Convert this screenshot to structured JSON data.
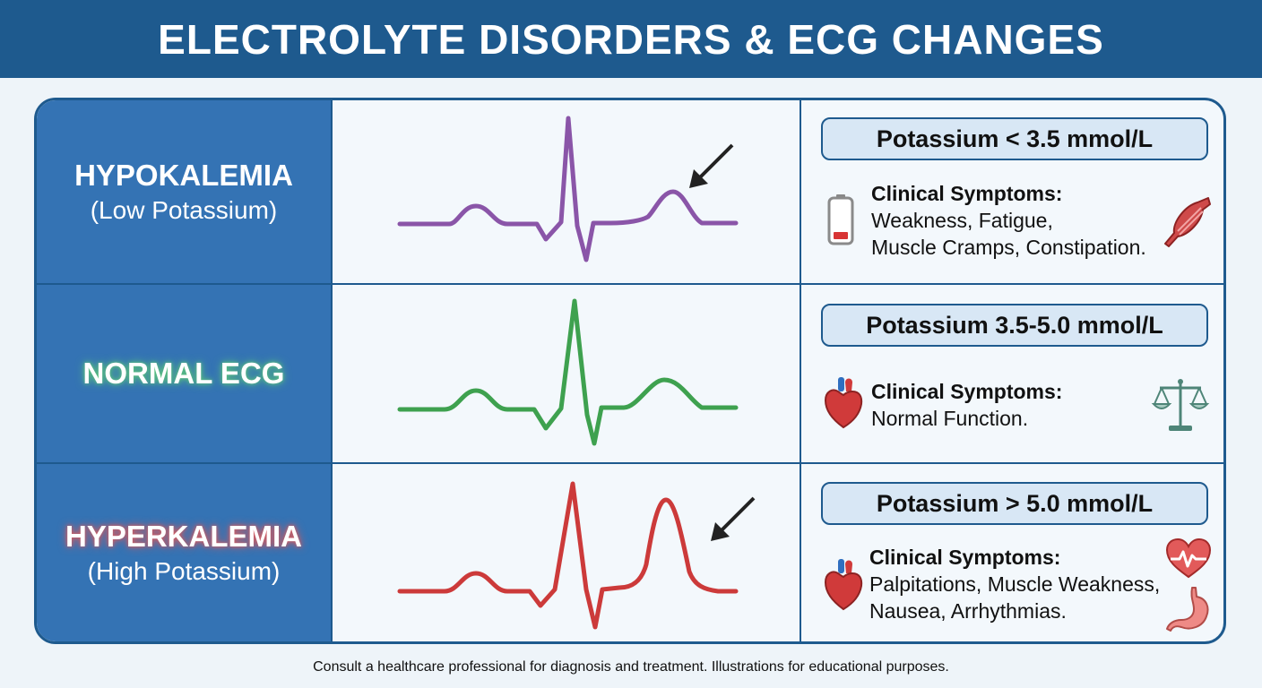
{
  "header": {
    "title": "ELECTROLYTE DISORDERS & ECG CHANGES"
  },
  "rows": [
    {
      "label_main": "HYPOKALEMIA",
      "label_sub": "(Low Potassium)",
      "potassium": "Potassium < 3.5 mmol/L",
      "symptoms_heading": "Clinical Symptoms:",
      "symptoms_lines": [
        "Weakness, Fatigue,",
        "Muscle Cramps, Constipation."
      ],
      "ecg_color": "#8a55a8",
      "icons": [
        "battery-low-icon",
        "muscle-icon"
      ]
    },
    {
      "label_main": "NORMAL ECG",
      "label_sub": "",
      "potassium": "Potassium 3.5-5.0 mmol/L",
      "symptoms_heading": "Clinical Symptoms:",
      "symptoms_lines": [
        "Normal Function."
      ],
      "ecg_color": "#3ea14f",
      "icons": [
        "heart-icon",
        "balance-scale-icon"
      ]
    },
    {
      "label_main": "HYPERKALEMIA",
      "label_sub": "(High Potassium)",
      "potassium": "Potassium > 5.0 mmol/L",
      "symptoms_heading": "Clinical Symptoms:",
      "symptoms_lines": [
        "Palpitations, Muscle Weakness,",
        "Nausea, Arrhythmias."
      ],
      "ecg_color": "#cc3a3a",
      "icons": [
        "heart-icon",
        "heart-pulse-icon",
        "stomach-icon"
      ]
    }
  ],
  "footer": {
    "text": "Consult a healthcare professional for diagnosis and treatment. Illustrations for educational purposes."
  },
  "colors": {
    "header_bg": "#1e5a8e",
    "label_bg": "#3473b4",
    "pill_bg": "#d8e7f5"
  }
}
